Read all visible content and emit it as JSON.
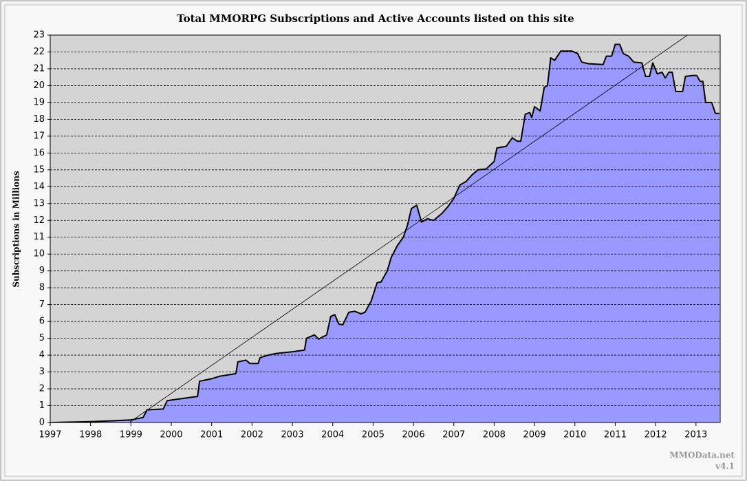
{
  "chart_data": {
    "type": "area",
    "title": "Total MMORPG Subscriptions and Active Accounts listed on this site",
    "y_label": "Subscriptions in Millions",
    "footer": [
      "MMOData.net",
      "v4.1"
    ],
    "xlim": [
      1997,
      2013.6
    ],
    "xticks": [
      1997,
      1998,
      1999,
      2000,
      2001,
      2002,
      2003,
      2004,
      2005,
      2006,
      2007,
      2008,
      2009,
      2010,
      2011,
      2012,
      2013
    ],
    "ylim": [
      0,
      23
    ],
    "yticks": [
      0,
      1,
      2,
      3,
      4,
      5,
      6,
      7,
      8,
      9,
      10,
      11,
      12,
      13,
      14,
      15,
      16,
      17,
      18,
      19,
      20,
      21,
      22,
      23
    ],
    "grid": true,
    "series": [
      {
        "type": "area",
        "color": "#9999ff",
        "x": [
          1997,
          1998,
          1998.5,
          1999,
          1999.3,
          1999.4,
          1999.8,
          1999.9,
          2000.2,
          2000.5,
          2000.65,
          2000.7,
          2001,
          2001.2,
          2001.6,
          2001.65,
          2001.85,
          2001.95,
          2002.15,
          2002.2,
          2002.4,
          2002.6,
          2002.8,
          2003,
          2003.15,
          2003.3,
          2003.35,
          2003.55,
          2003.65,
          2003.85,
          2003.95,
          2004.05,
          2004.15,
          2004.25,
          2004.4,
          2004.55,
          2004.7,
          2004.8,
          2004.95,
          2005.1,
          2005.2,
          2005.35,
          2005.45,
          2005.6,
          2005.75,
          2005.85,
          2005.95,
          2006.08,
          2006.2,
          2006.35,
          2006.5,
          2006.7,
          2006.85,
          2007,
          2007.15,
          2007.3,
          2007.45,
          2007.6,
          2007.8,
          2008,
          2008.07,
          2008.3,
          2008.45,
          2008.57,
          2008.66,
          2008.77,
          2008.88,
          2008.93,
          2009,
          2009.14,
          2009.24,
          2009.32,
          2009.4,
          2009.5,
          2009.65,
          2009.93,
          2010.07,
          2010.17,
          2010.34,
          2010.7,
          2010.78,
          2010.91,
          2011,
          2011.11,
          2011.2,
          2011.33,
          2011.46,
          2011.66,
          2011.75,
          2011.85,
          2011.93,
          2012.04,
          2012.16,
          2012.24,
          2012.33,
          2012.41,
          2012.5,
          2012.67,
          2012.74,
          2012.91,
          2013.02,
          2013.1,
          2013.17,
          2013.24,
          2013.39,
          2013.48,
          2013.58
        ],
        "values": [
          0,
          0.05,
          0.1,
          0.15,
          0.3,
          0.75,
          0.8,
          1.3,
          1.4,
          1.5,
          1.55,
          2.45,
          2.6,
          2.75,
          2.9,
          3.6,
          3.7,
          3.5,
          3.5,
          3.85,
          4.0,
          4.1,
          4.15,
          4.2,
          4.25,
          4.3,
          5.0,
          5.2,
          4.95,
          5.2,
          6.3,
          6.4,
          5.85,
          5.8,
          6.55,
          6.6,
          6.45,
          6.55,
          7.2,
          8.3,
          8.35,
          9.0,
          9.8,
          10.5,
          11.0,
          11.7,
          12.7,
          12.9,
          11.9,
          12.1,
          12.0,
          12.4,
          12.8,
          13.3,
          14.1,
          14.3,
          14.7,
          15.0,
          15.05,
          15.5,
          16.3,
          16.4,
          16.9,
          16.7,
          16.7,
          18.3,
          18.4,
          18.1,
          18.75,
          18.5,
          19.9,
          20.0,
          21.65,
          21.5,
          22.05,
          22.05,
          21.9,
          21.4,
          21.3,
          21.25,
          21.75,
          21.75,
          22.45,
          22.45,
          21.9,
          21.75,
          21.4,
          21.35,
          20.55,
          20.55,
          21.35,
          20.7,
          20.8,
          20.45,
          20.8,
          20.8,
          19.65,
          19.65,
          20.55,
          20.6,
          20.6,
          20.25,
          20.25,
          19.0,
          19.0,
          18.35,
          18.35
        ]
      },
      {
        "type": "line",
        "color": "#000000",
        "x": [
          1998.96,
          2012.79
        ],
        "values": [
          0,
          23
        ]
      }
    ]
  }
}
